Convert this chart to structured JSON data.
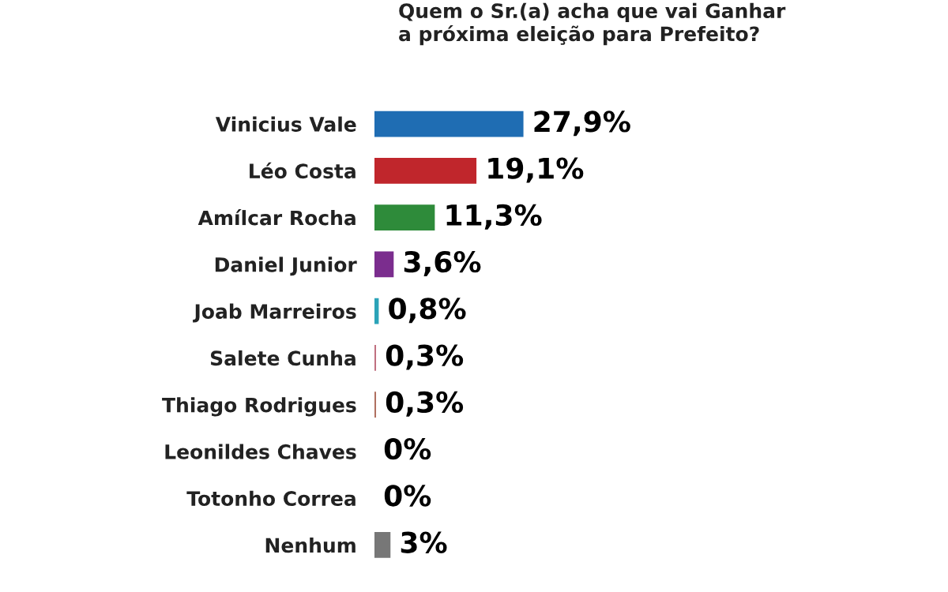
{
  "chart_data": {
    "type": "bar",
    "orientation": "horizontal",
    "title": "Quem o Sr.(a) acha que vai Ganhar\na próxima eleição para Prefeito?",
    "categories": [
      "Vinicius Vale",
      "Léo Costa",
      "Amílcar Rocha",
      "Daniel Junior",
      "Joab Marreiros",
      "Salete Cunha",
      "Thiago Rodrigues",
      "Leonildes Chaves",
      "Totonho Correa",
      "Nenhum"
    ],
    "values": [
      27.9,
      19.1,
      11.3,
      3.6,
      0.8,
      0.3,
      0.3,
      0,
      0,
      3
    ],
    "colors": [
      "#1f6db3",
      "#c0262c",
      "#2e8b3a",
      "#7b2d8e",
      "#2ba3b8",
      "#c07080",
      "#b07060",
      "#888888",
      "#888888",
      "#777777"
    ],
    "value_labels": [
      "27,9%",
      "19,1%",
      "11,3%",
      "3,6%",
      "0,8%",
      "0,3%",
      "0,3%",
      "0%",
      "0%",
      "3%"
    ],
    "legend": false,
    "grid": false
  }
}
